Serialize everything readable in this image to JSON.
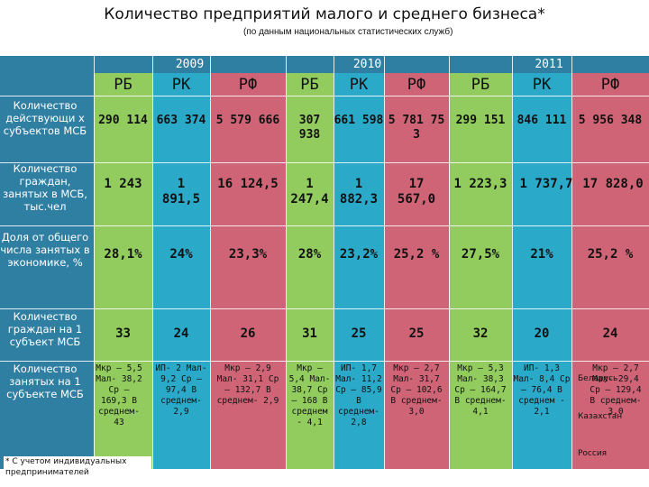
{
  "title": "Количество предприятий малого и среднего бизнеса*",
  "subtitle": "(по данным национальных статистических служб)",
  "years": [
    "2009",
    "2010",
    "2011"
  ],
  "countries": [
    "РБ",
    "РК",
    "РФ",
    "РБ",
    "РК",
    "РФ",
    "РБ",
    "РК",
    "РФ"
  ],
  "rows": [
    {
      "label": "Количество действующи х субъектов МСБ",
      "cells": [
        "290 114",
        "663 374",
        "5 579 666",
        "307 938",
        "661 598",
        "5 781 75 3",
        "299 151",
        "846 111",
        "5 956 348"
      ]
    },
    {
      "label": "Количество граждан, занятых в МСБ, тыс.чел",
      "cells": [
        "1 243",
        "1 891,5",
        "16 124,5",
        "1 247,4",
        "1 882,3",
        "17 567,0",
        "1 223,3",
        "1 737,7",
        "17 828,0"
      ]
    },
    {
      "label": "Доля от общего числа занятых в экономике, %",
      "cells": [
        "28,1%",
        "24%",
        "23,3%",
        "28%",
        "23,2%",
        "25,2 %",
        "27,5%",
        "21%",
        "25,2 %"
      ]
    },
    {
      "label": "Количество граждан на 1 субъект МСБ",
      "cells": [
        "33",
        "24",
        "26",
        "31",
        "25",
        "25",
        "32",
        "20",
        "24"
      ]
    },
    {
      "label": "Количество занятых на 1 субъекте МСБ",
      "cells": [
        "Мкр – 5,5 Мал- 38,2 Ср – 169,3 В среднем- 43",
        "ИП- 2 Мал- 9,2 Ср – 97,4 В среднем- 2,9",
        "Мкр – 2,9 Мал- 31,1 Ср – 132,7 В среднем- 2,9",
        "Мкр – 5,4 Мал- 38,7 Ср – 168 В среднем - 4,1",
        "ИП- 1,7 Мал- 11,2 Ср – 85,9 В среднем- 2,8",
        "Мкр – 2,7 Мал- 31,7 Ср – 102,6 В среднем- 3,0",
        "Мкр – 5,3 Мал- 38,3 Ср – 164,7 В среднем- 4,1",
        "ИП- 1,3 Мал- 8,4 Ср – 76,4 В среднем - 2,1",
        "Мкр – 2,7 Мал- 29,4 Ср – 129,4 В среднем- 3,0"
      ]
    }
  ],
  "overlays": {
    "belarus": "Беларусь",
    "kazakhstan": "Казахстан",
    "russia": "Россия"
  },
  "footnote": "* С учетом индивидуальных предпринимателей",
  "colors": {
    "header": "#2f7fa3",
    "rb": "#92cc5e",
    "rk": "#2aa9c8",
    "rf": "#cf6476"
  }
}
